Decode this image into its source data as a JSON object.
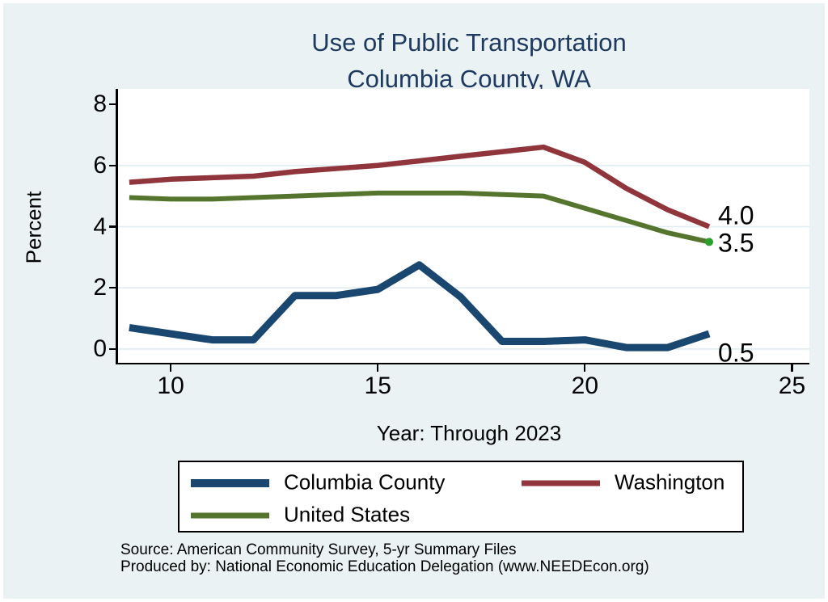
{
  "title": {
    "line1": "Use of Public Transportation",
    "line2": "Columbia County, WA"
  },
  "y_axis": {
    "label": "Percent",
    "ticks": [
      0,
      2,
      4,
      6,
      8
    ]
  },
  "x_axis": {
    "label": "Year: Through 2023",
    "ticks": [
      10,
      15,
      20,
      25
    ]
  },
  "chart_data": {
    "type": "line",
    "title": "Use of Public Transportation — Columbia County, WA",
    "xlabel": "Year: Through 2023",
    "ylabel": "Percent",
    "x": [
      9,
      10,
      11,
      12,
      13,
      14,
      15,
      16,
      17,
      18,
      19,
      20,
      21,
      22,
      23
    ],
    "x_meaning": "years 2009–2023 shown as 9–23",
    "series": [
      {
        "name": "Columbia County",
        "color": "#1a476f",
        "values": [
          0.7,
          0.5,
          0.3,
          0.3,
          1.75,
          1.75,
          1.95,
          2.75,
          1.7,
          0.25,
          0.25,
          0.3,
          0.05,
          0.05,
          0.5
        ]
      },
      {
        "name": "Washington",
        "color": "#90353b",
        "values": [
          5.45,
          5.55,
          5.6,
          5.65,
          5.8,
          5.9,
          6.0,
          6.15,
          6.3,
          6.45,
          6.6,
          6.1,
          5.25,
          4.55,
          4.0
        ]
      },
      {
        "name": "United States",
        "color": "#55752f",
        "end_dot_color": "#2ca02c",
        "values": [
          4.95,
          4.9,
          4.9,
          4.95,
          5.0,
          5.05,
          5.1,
          5.1,
          5.1,
          5.05,
          5.0,
          4.6,
          4.2,
          3.8,
          3.5
        ]
      }
    ],
    "xlim": [
      8.69,
      25.42
    ],
    "ylim": [
      -0.45,
      8.45
    ],
    "grid_values": [
      0,
      2,
      4,
      6
    ],
    "grid_color": "#dfecf1",
    "legend_position": "bottom",
    "background_color": "#eaf2f3",
    "plot_background_color": "#ffffff"
  },
  "end_labels": [
    {
      "text": "4.0",
      "series": "Washington"
    },
    {
      "text": "3.5",
      "series": "United States"
    },
    {
      "text": "0.5",
      "series": "Columbia County"
    }
  ],
  "legend": {
    "items": [
      {
        "label": "Columbia County",
        "color": "#1a476f"
      },
      {
        "label": "Washington",
        "color": "#90353b"
      },
      {
        "label": "United States",
        "color": "#55752f"
      }
    ]
  },
  "footer": {
    "line1": "Source: American Community Survey, 5-yr Summary Files",
    "line2": "Produced by: National Economic Education Delegation (www.NEEDEcon.org)"
  }
}
